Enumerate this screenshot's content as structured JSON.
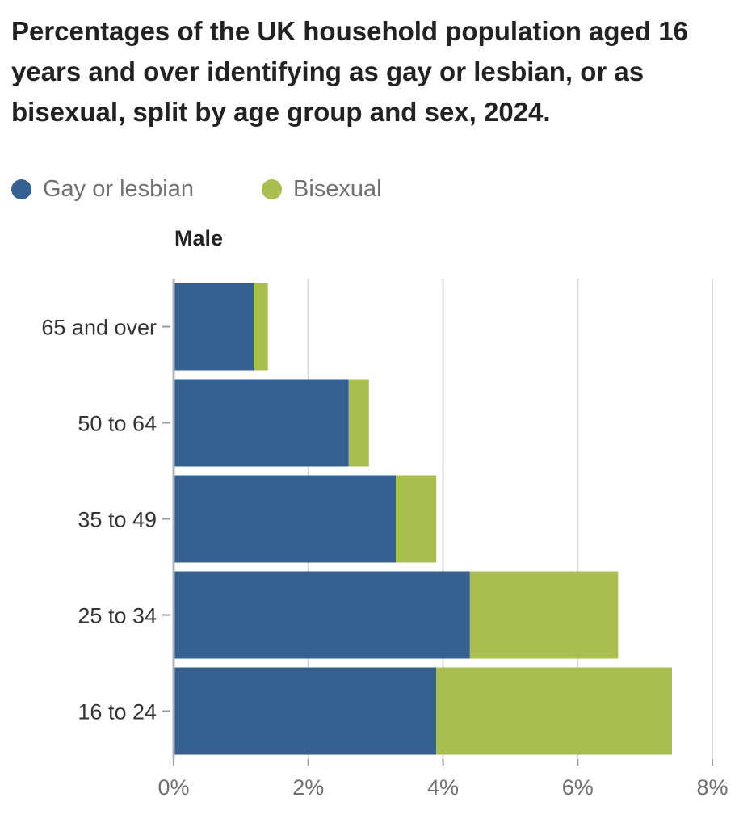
{
  "chart_data": {
    "type": "bar",
    "orientation": "horizontal",
    "stacked": true,
    "title": "Percentages of the UK household population aged 16 years and over identifying as gay or lesbian, or as bisexual, split by age group and sex, 2024.",
    "panel_title": "Male",
    "categories": [
      "65 and over",
      "50 to 64",
      "35 to 49",
      "25 to 34",
      "16 to 24"
    ],
    "series": [
      {
        "name": "Gay or lesbian",
        "color": "#356090",
        "values": [
          1.2,
          2.6,
          3.3,
          4.4,
          3.9
        ]
      },
      {
        "name": "Bisexual",
        "color": "#aabd51",
        "values": [
          0.2,
          0.3,
          0.6,
          2.2,
          3.5
        ]
      }
    ],
    "xlim": [
      0,
      8
    ],
    "xticks": [
      0,
      2,
      4,
      6,
      8
    ],
    "xtick_labels": [
      "0%",
      "2%",
      "4%",
      "6%",
      "8%"
    ],
    "xlabel": "",
    "ylabel": "",
    "grid": true,
    "legend_position": "top-left"
  }
}
